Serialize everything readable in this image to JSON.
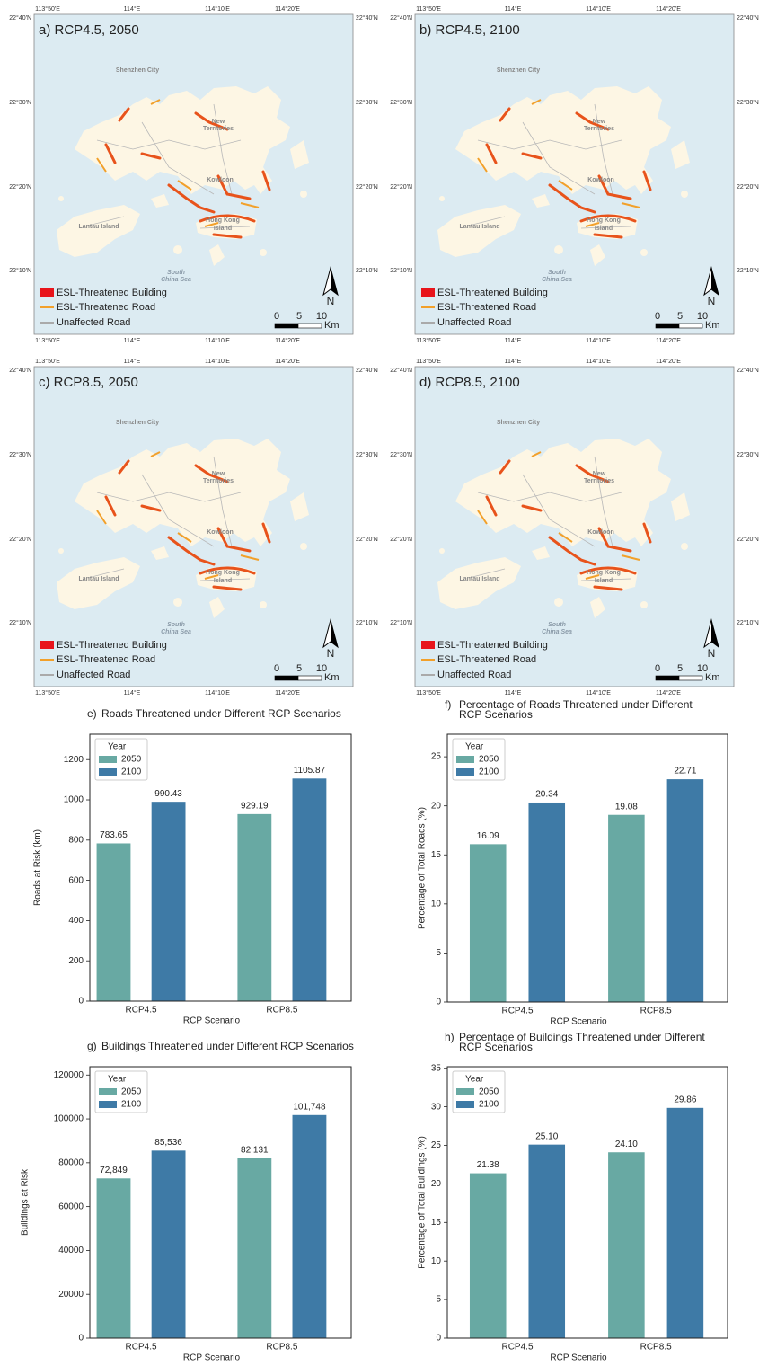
{
  "maps": {
    "panels": [
      {
        "title": "a) RCP4.5, 2050"
      },
      {
        "title": "b) RCP4.5, 2100"
      },
      {
        "title": "c) RCP8.5, 2050"
      },
      {
        "title": "d) RCP8.5, 2100"
      }
    ],
    "lon_ticks": [
      "113°50'E",
      "114°E",
      "114°10'E",
      "114°20'E"
    ],
    "lat_ticks": [
      "22°40'N",
      "22°30'N",
      "22°20'N",
      "22°10'N"
    ],
    "places": [
      {
        "lines": [
          "Shenzhen City"
        ]
      },
      {
        "lines": [
          "New",
          "Territories"
        ]
      },
      {
        "lines": [
          "Kowloon"
        ]
      },
      {
        "lines": [
          "Lantau Island"
        ]
      },
      {
        "lines": [
          "Hong Kong",
          "Island"
        ]
      },
      {
        "lines": [
          "South",
          "China Sea"
        ]
      }
    ],
    "legend": [
      "ESL-Threatened Building",
      "ESL-Threatened Road",
      "Unaffected Road"
    ],
    "scale": [
      "0",
      "5",
      "10",
      "Km"
    ],
    "north": "N"
  },
  "chart_data": [
    {
      "type": "bar",
      "panel_label": "e)",
      "title": [
        "Roads Threatened under Different RCP Scenarios"
      ],
      "xlabel": "RCP Scenario",
      "ylabel": "Roads at Risk (km)",
      "legend_title": "Year",
      "categories": [
        "RCP4.5",
        "RCP8.5"
      ],
      "series": [
        {
          "name": "2050",
          "color": "#68a9a3",
          "values": [
            783.65,
            929.19
          ]
        },
        {
          "name": "2100",
          "color": "#3e7aa6",
          "values": [
            990.43,
            1105.87
          ]
        }
      ],
      "ylim": [
        0,
        1326
      ],
      "yticks": [
        0,
        200,
        400,
        600,
        800,
        1000,
        1200
      ]
    },
    {
      "type": "bar",
      "panel_label": "f)",
      "title": [
        "Percentage of Roads Threatened under Different",
        "RCP Scenarios"
      ],
      "xlabel": "RCP Scenario",
      "ylabel": "Percentage of Total Roads (%)",
      "legend_title": "Year",
      "categories": [
        "RCP4.5",
        "RCP8.5"
      ],
      "series": [
        {
          "name": "2050",
          "color": "#68a9a3",
          "values": [
            16.09,
            19.08
          ]
        },
        {
          "name": "2100",
          "color": "#3e7aa6",
          "values": [
            20.34,
            22.71
          ]
        }
      ],
      "ylim": [
        0,
        27.3
      ],
      "yticks": [
        0,
        5,
        10,
        15,
        20,
        25
      ]
    },
    {
      "type": "bar",
      "panel_label": "g)",
      "title": [
        "Buildings Threatened under Different RCP Scenarios"
      ],
      "xlabel": "RCP Scenario",
      "ylabel": "Buildings at Risk",
      "legend_title": "Year",
      "categories": [
        "RCP4.5",
        "RCP8.5"
      ],
      "series": [
        {
          "name": "2050",
          "color": "#68a9a3",
          "values": [
            72849,
            82131
          ],
          "value_labels": [
            "72,849",
            "82,131"
          ]
        },
        {
          "name": "2100",
          "color": "#3e7aa6",
          "values": [
            85536,
            101748
          ],
          "value_labels": [
            "85,536",
            "101,748"
          ]
        }
      ],
      "ylim": [
        0,
        123800
      ],
      "yticks": [
        0,
        20000,
        40000,
        60000,
        80000,
        100000,
        120000
      ]
    },
    {
      "type": "bar",
      "panel_label": "h)",
      "title": [
        "Percentage of Buildings Threatened under Different",
        "RCP Scenarios"
      ],
      "xlabel": "RCP Scenario",
      "ylabel": "Percentage of Total Buildings (%)",
      "legend_title": "Year",
      "categories": [
        "RCP4.5",
        "RCP8.5"
      ],
      "series": [
        {
          "name": "2050",
          "color": "#68a9a3",
          "values": [
            21.38,
            24.1
          ],
          "value_labels": [
            "21.38",
            "24.10"
          ]
        },
        {
          "name": "2100",
          "color": "#3e7aa6",
          "values": [
            25.1,
            29.86
          ],
          "value_labels": [
            "25.10",
            "29.86"
          ]
        }
      ],
      "ylim": [
        0,
        35.2
      ],
      "yticks": [
        0,
        5,
        10,
        15,
        20,
        25,
        30,
        35
      ]
    }
  ]
}
